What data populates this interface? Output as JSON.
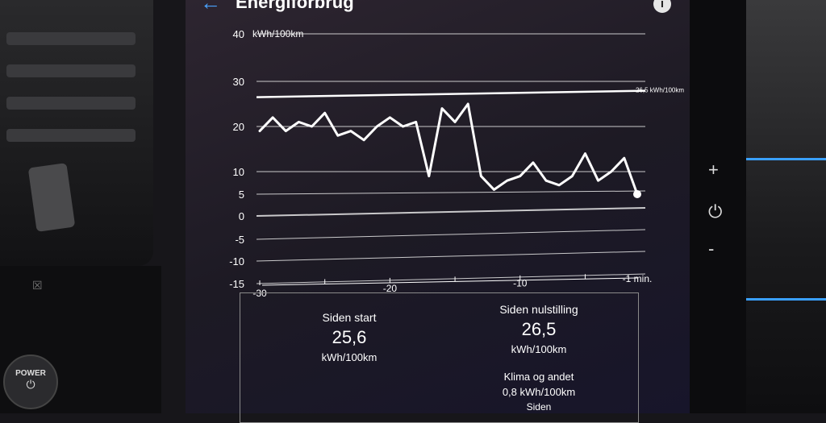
{
  "header": {
    "title": "Energiforbrug",
    "back_icon": "arrow-left-icon",
    "info_icon": "info-icon"
  },
  "chart_data": {
    "type": "line",
    "ylabel": "kWh/100km",
    "ylim": [
      -15,
      40
    ],
    "yticks": [
      "40",
      "30",
      "20",
      "10",
      "5",
      "0",
      "-5",
      "-10",
      "-15"
    ],
    "xlim": [
      -30,
      -1
    ],
    "xticks": [
      "-30",
      "-20",
      "-10",
      "-1 min."
    ],
    "grid": true,
    "average_line": {
      "value": 26.5,
      "label": "26,5 kWh/100km"
    },
    "series": [
      {
        "x": [
          -30,
          -29,
          -28,
          -27,
          -26,
          -25,
          -24,
          -23,
          -22,
          -21,
          -20,
          -19,
          -18,
          -17,
          -16,
          -15,
          -14,
          -13,
          -12,
          -11,
          -10,
          -9,
          -8,
          -7,
          -6,
          -5,
          -4,
          -3,
          -2,
          -1
        ],
        "values": [
          19,
          22,
          19,
          21,
          20,
          23,
          18,
          19,
          17,
          20,
          22,
          20,
          21,
          9,
          24,
          21,
          25,
          9,
          6,
          8,
          9,
          12,
          8,
          7,
          9,
          14,
          8,
          10,
          13,
          5
        ]
      }
    ],
    "color": "#ffffff"
  },
  "stats": {
    "since_start": {
      "title": "Siden start",
      "value": "25,6",
      "unit": "kWh/100km"
    },
    "since_reset": {
      "title": "Siden nulstilling",
      "value": "26,5",
      "unit": "kWh/100km"
    },
    "climate": {
      "title": "Klima og andet",
      "value": "0,8 kWh/100km",
      "cut_label": "Siden"
    }
  },
  "car": {
    "power_label": "POWER",
    "power_icon": "power-icon",
    "plus_label": "+",
    "minus_label": "-",
    "power_side_icon": "power-icon"
  },
  "colors": {
    "accent": "#4aa3ff",
    "stripe": "#3aa0ff"
  }
}
